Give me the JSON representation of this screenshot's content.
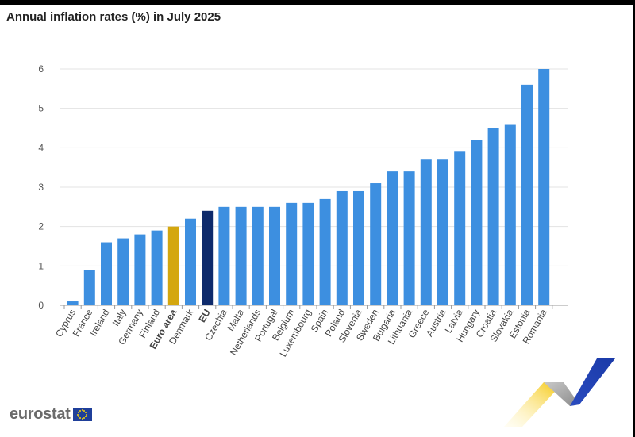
{
  "header": {
    "title": "Annual inflation rates (%) in July 2025"
  },
  "brand": {
    "logo_text": "eurostat",
    "flag_icon": "eu-flag-icon",
    "decoration_icon": "eurostat-swoosh-icon"
  },
  "colors": {
    "default_bar": "#3d8fe0",
    "euro_area_bar": "#d4a70f",
    "eu_bar": "#0e2a6b"
  },
  "chart_data": {
    "type": "bar",
    "title": "Annual inflation rates (%) in July 2025",
    "xlabel": "",
    "ylabel": "",
    "ylim": [
      0,
      6
    ],
    "yticks": [
      0,
      1,
      2,
      3,
      4,
      5,
      6
    ],
    "grid": true,
    "legend": "none",
    "categories": [
      "Cyprus",
      "France",
      "Ireland",
      "Italy",
      "Germany",
      "Finland",
      "Euro area",
      "Denmark",
      "EU",
      "Czechia",
      "Malta",
      "Netherlands",
      "Portugal",
      "Belgium",
      "Luxembourg",
      "Spain",
      "Poland",
      "Slovenia",
      "Sweden",
      "Bulgaria",
      "Lithuania",
      "Greece",
      "Austria",
      "Latvia",
      "Hungary",
      "Croatia",
      "Slovakia",
      "Estonia",
      "Romania"
    ],
    "values": [
      0.1,
      0.9,
      1.6,
      1.7,
      1.8,
      1.9,
      2.0,
      2.2,
      2.4,
      2.5,
      2.5,
      2.5,
      2.5,
      2.6,
      2.6,
      2.7,
      2.9,
      2.9,
      3.1,
      3.4,
      3.4,
      3.7,
      3.7,
      3.9,
      4.2,
      4.5,
      4.6,
      5.6,
      6.0
    ],
    "highlighted": {
      "Euro area": "euro_area_bar",
      "EU": "eu_bar"
    },
    "bold_labels": [
      "Euro area",
      "EU"
    ]
  }
}
